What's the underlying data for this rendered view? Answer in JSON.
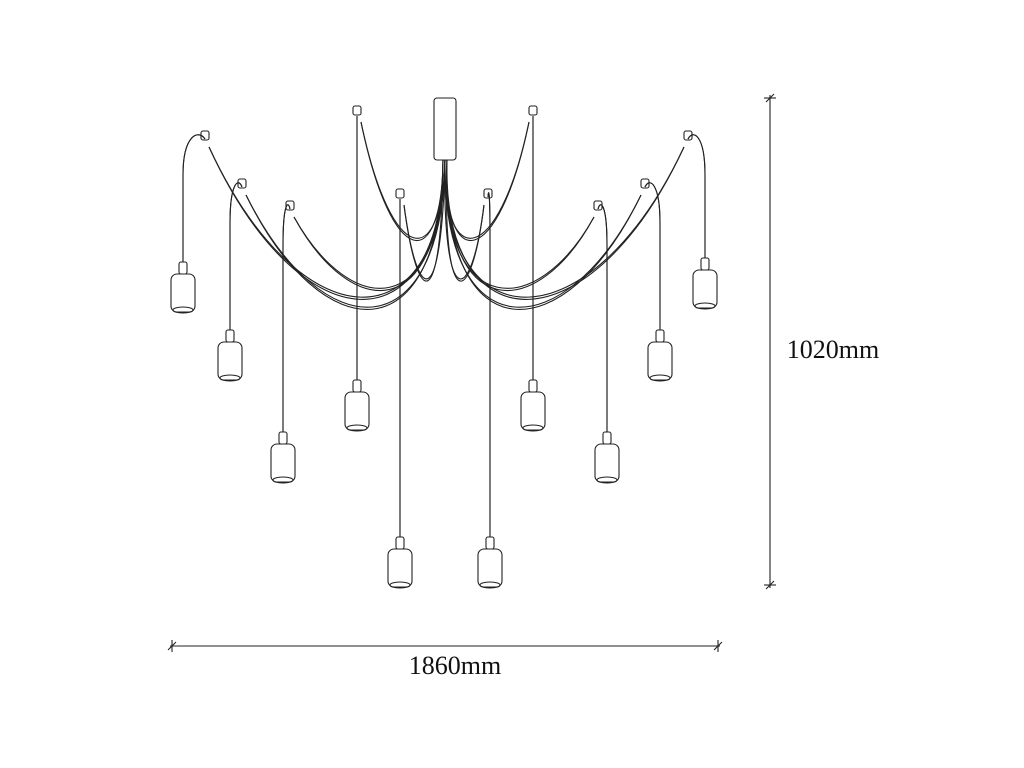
{
  "dimensions": {
    "width": "1860mm",
    "height": "1020mm"
  }
}
